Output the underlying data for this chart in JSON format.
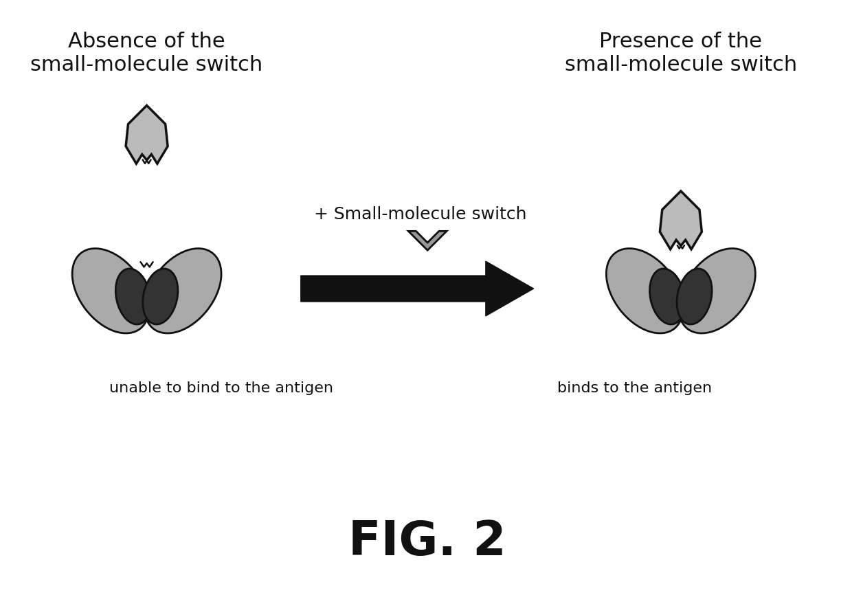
{
  "bg_color": "#ffffff",
  "title_left": "Absence of the\nsmall-molecule switch",
  "title_right": "Presence of the\nsmall-molecule switch",
  "label_left": "unable to bind to the antigen",
  "label_right": "binds to the antigen",
  "arrow_label_top": "+ Small-molecule switch",
  "fig_label": "FIG. 2",
  "ab_dark": "#333333",
  "ab_mid": "#777777",
  "ab_light": "#aaaaaa",
  "ag_fill": "#bbbbbb",
  "ag_edge": "#111111",
  "arrow_fill": "#111111",
  "chevron_fill": "#999999",
  "chevron_edge": "#111111",
  "title_fontsize": 22,
  "label_fontsize": 16,
  "fig_label_fontsize": 50,
  "arrow_text_fontsize": 18
}
